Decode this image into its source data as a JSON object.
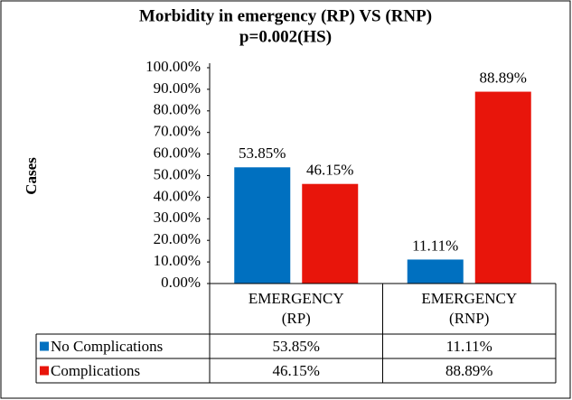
{
  "chart_data": {
    "type": "bar",
    "title": "Morbidity in emergency (RP) VS (RNP)",
    "subtitle": "p=0.002(HS)",
    "y_label": "Cases",
    "categories": [
      "EMERGENCY (RP)",
      "EMERGENCY (RNP)"
    ],
    "series": [
      {
        "name": "No Complications",
        "color": "#0070c0",
        "values": [
          53.85,
          11.11
        ],
        "value_labels": [
          "53.85%",
          "11.11%"
        ]
      },
      {
        "name": "Complications",
        "color": "#e8150b",
        "values": [
          46.15,
          88.89
        ],
        "value_labels": [
          "46.15%",
          "88.89%"
        ]
      }
    ],
    "ylim": [
      0,
      100
    ],
    "yticks": [
      {
        "value": 0,
        "label": "0.00%"
      },
      {
        "value": 10,
        "label": "10.00%"
      },
      {
        "value": 20,
        "label": "20.00%"
      },
      {
        "value": 30,
        "label": "30.00%"
      },
      {
        "value": 40,
        "label": "40.00%"
      },
      {
        "value": 50,
        "label": "50.00%"
      },
      {
        "value": 60,
        "label": "60.00%"
      },
      {
        "value": 70,
        "label": "70.00%"
      },
      {
        "value": 80,
        "label": "80.00%"
      },
      {
        "value": 90,
        "label": "90.00%"
      },
      {
        "value": 100,
        "label": "100.00%"
      }
    ],
    "data_table": true
  }
}
